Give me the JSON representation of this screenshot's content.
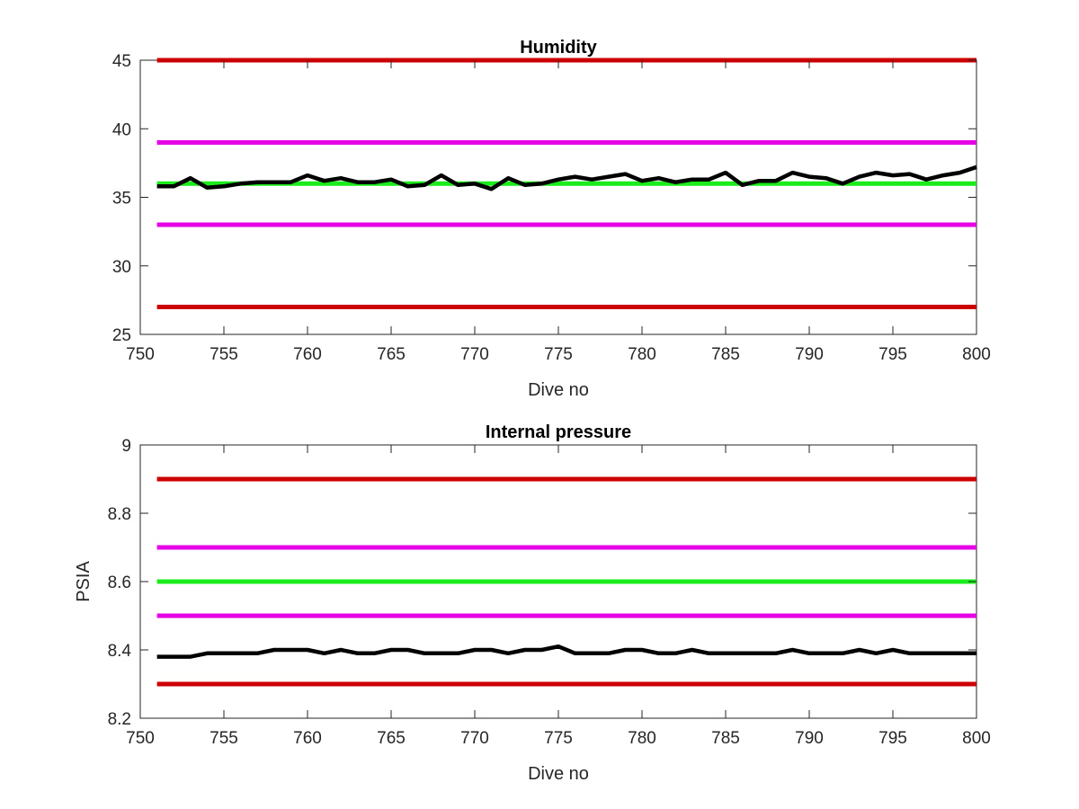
{
  "chart_data": [
    {
      "type": "line",
      "title": "Humidity",
      "xlabel": "Dive no",
      "ylabel": "",
      "xlim": [
        750,
        800
      ],
      "ylim": [
        25,
        45
      ],
      "xticks": [
        "750",
        "755",
        "760",
        "765",
        "770",
        "775",
        "780",
        "785",
        "790",
        "795",
        "800"
      ],
      "yticks": [
        "25",
        "30",
        "35",
        "40",
        "45"
      ],
      "grid": false,
      "series": [
        {
          "color": "#cc0000",
          "x": [
            751,
            800
          ],
          "y": [
            45,
            45
          ]
        },
        {
          "color": "#cc0000",
          "x": [
            751,
            800
          ],
          "y": [
            27,
            27
          ]
        },
        {
          "color": "#e600e6",
          "x": [
            751,
            800
          ],
          "y": [
            39,
            39
          ]
        },
        {
          "color": "#e600e6",
          "x": [
            751,
            800
          ],
          "y": [
            33,
            33
          ]
        },
        {
          "color": "#1aeb1a",
          "x": [
            751,
            800
          ],
          "y": [
            36,
            36
          ]
        },
        {
          "color": "#000000",
          "x": [
            751,
            752,
            753,
            754,
            755,
            756,
            757,
            758,
            759,
            760,
            761,
            762,
            763,
            764,
            765,
            766,
            767,
            768,
            769,
            770,
            771,
            772,
            773,
            774,
            775,
            776,
            777,
            778,
            779,
            780,
            781,
            782,
            783,
            784,
            785,
            786,
            787,
            788,
            789,
            790,
            791,
            792,
            793,
            794,
            795,
            796,
            797,
            798,
            799,
            800
          ],
          "y": [
            35.8,
            35.8,
            36.4,
            35.7,
            35.8,
            36.0,
            36.1,
            36.1,
            36.1,
            36.6,
            36.2,
            36.4,
            36.1,
            36.1,
            36.3,
            35.8,
            35.9,
            36.6,
            35.9,
            36.0,
            35.6,
            36.4,
            35.9,
            36.0,
            36.3,
            36.5,
            36.3,
            36.5,
            36.7,
            36.2,
            36.4,
            36.1,
            36.3,
            36.3,
            36.8,
            35.9,
            36.2,
            36.2,
            36.8,
            36.5,
            36.4,
            36.0,
            36.5,
            36.8,
            36.6,
            36.7,
            36.3,
            36.6,
            36.8,
            37.2
          ]
        }
      ]
    },
    {
      "type": "line",
      "title": "Internal pressure",
      "xlabel": "Dive no",
      "ylabel": "PSIA",
      "xlim": [
        750,
        800
      ],
      "ylim": [
        8.2,
        9
      ],
      "xticks": [
        "750",
        "755",
        "760",
        "765",
        "770",
        "775",
        "780",
        "785",
        "790",
        "795",
        "800"
      ],
      "yticks": [
        "8.2",
        "8.4",
        "8.6",
        "8.8",
        "9"
      ],
      "grid": false,
      "series": [
        {
          "color": "#cc0000",
          "x": [
            751,
            800
          ],
          "y": [
            8.9,
            8.9
          ]
        },
        {
          "color": "#cc0000",
          "x": [
            751,
            800
          ],
          "y": [
            8.3,
            8.3
          ]
        },
        {
          "color": "#e600e6",
          "x": [
            751,
            800
          ],
          "y": [
            8.7,
            8.7
          ]
        },
        {
          "color": "#e600e6",
          "x": [
            751,
            800
          ],
          "y": [
            8.5,
            8.5
          ]
        },
        {
          "color": "#1aeb1a",
          "x": [
            751,
            800
          ],
          "y": [
            8.6,
            8.6
          ]
        },
        {
          "color": "#000000",
          "x": [
            751,
            752,
            753,
            754,
            755,
            756,
            757,
            758,
            759,
            760,
            761,
            762,
            763,
            764,
            765,
            766,
            767,
            768,
            769,
            770,
            771,
            772,
            773,
            774,
            775,
            776,
            777,
            778,
            779,
            780,
            781,
            782,
            783,
            784,
            785,
            786,
            787,
            788,
            789,
            790,
            791,
            792,
            793,
            794,
            795,
            796,
            797,
            798,
            799,
            800
          ],
          "y": [
            8.38,
            8.38,
            8.38,
            8.39,
            8.39,
            8.39,
            8.39,
            8.4,
            8.4,
            8.4,
            8.39,
            8.4,
            8.39,
            8.39,
            8.4,
            8.4,
            8.39,
            8.39,
            8.39,
            8.4,
            8.4,
            8.39,
            8.4,
            8.4,
            8.41,
            8.39,
            8.39,
            8.39,
            8.4,
            8.4,
            8.39,
            8.39,
            8.4,
            8.39,
            8.39,
            8.39,
            8.39,
            8.39,
            8.4,
            8.39,
            8.39,
            8.39,
            8.4,
            8.39,
            8.4,
            8.39,
            8.39,
            8.39,
            8.39,
            8.39
          ]
        }
      ]
    }
  ]
}
